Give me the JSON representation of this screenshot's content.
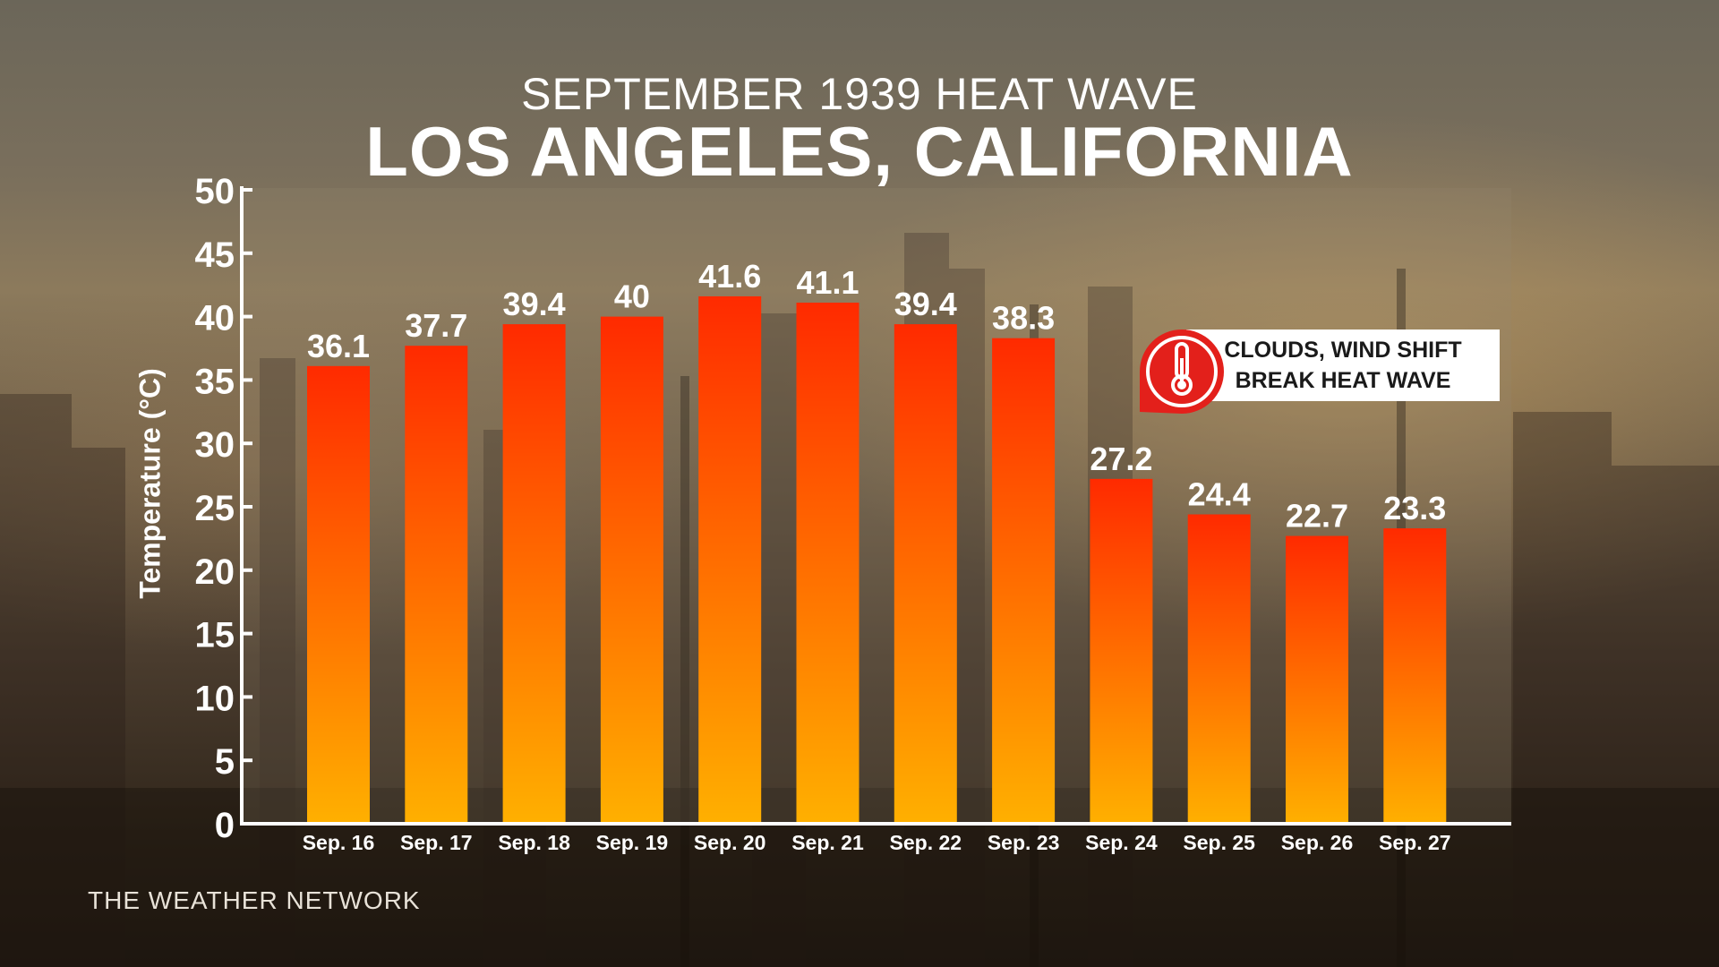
{
  "header": {
    "subtitle": "SEPTEMBER 1939 HEAT WAVE",
    "title": "LOS ANGELES, CALIFORNIA"
  },
  "callout": {
    "line1": "CLOUDS, WIND SHIFT",
    "line2": "BREAK HEAT WAVE",
    "icon": "thermometer-icon"
  },
  "brand": "THE WEATHER NETWORK",
  "colors": {
    "bar_top": "#ff2a00",
    "bar_bottom": "#ffb000",
    "callout_red": "#e3201b"
  },
  "chart_data": {
    "type": "bar",
    "ylabel": "Temperature (°C)",
    "ylim": [
      0,
      50
    ],
    "yticks": [
      "0",
      "5",
      "10",
      "15",
      "20",
      "25",
      "30",
      "35",
      "40",
      "45",
      "50"
    ],
    "grid": false,
    "categories": [
      "Sep. 16",
      "Sep. 17",
      "Sep. 18",
      "Sep. 19",
      "Sep. 20",
      "Sep. 21",
      "Sep. 22",
      "Sep. 23",
      "Sep. 24",
      "Sep. 25",
      "Sep. 26",
      "Sep. 27"
    ],
    "values": [
      36.1,
      37.7,
      39.4,
      40,
      41.6,
      41.1,
      39.4,
      38.3,
      27.2,
      24.4,
      22.7,
      23.3
    ],
    "value_labels": [
      "36.1",
      "37.7",
      "39.4",
      "40",
      "41.6",
      "41.1",
      "39.4",
      "38.3",
      "27.2",
      "24.4",
      "22.7",
      "23.3"
    ]
  }
}
